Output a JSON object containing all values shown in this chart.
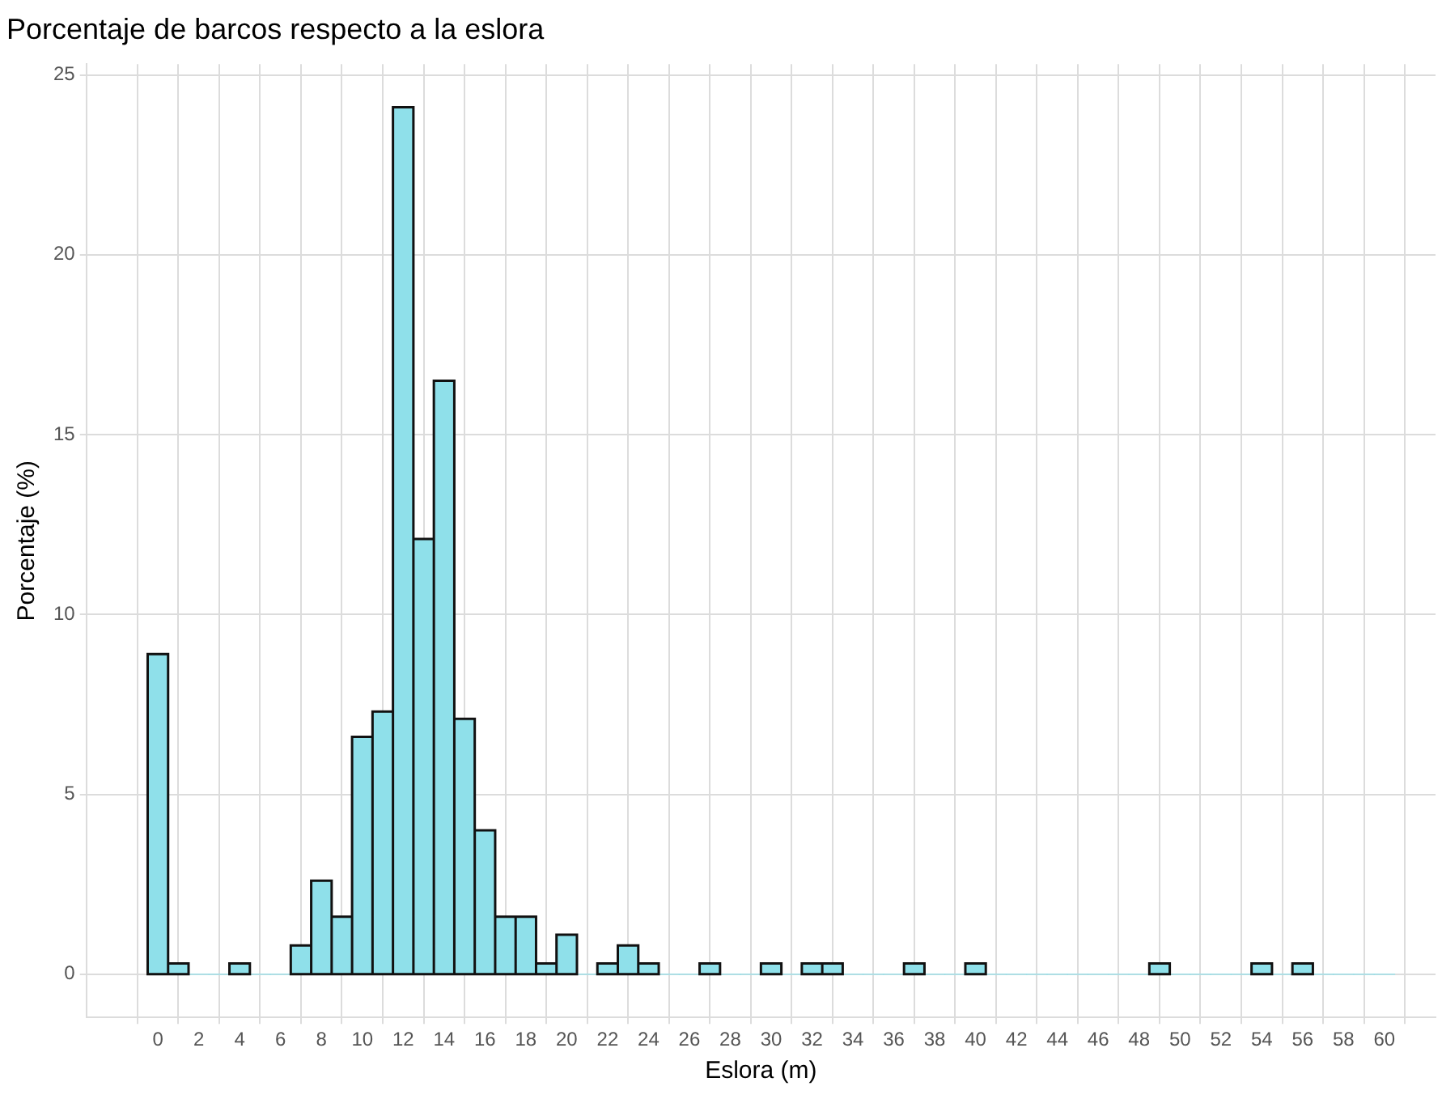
{
  "chart_data": {
    "type": "histogram",
    "title": "Porcentaje de barcos respecto a la eslora",
    "xlabel": "Eslora (m)",
    "ylabel": "Porcentaje (%)",
    "bins": [
      -0.5,
      0.5,
      1.5,
      2.5,
      3.5,
      4.5,
      5.5,
      6.5,
      7.5,
      8.5,
      9.5,
      10.5,
      11.5,
      12.5,
      13.5,
      14.5,
      15.5,
      16.5,
      17.5,
      18.5,
      19.5,
      20.5,
      21.5,
      22.5,
      23.5,
      24.5,
      25.5,
      26.5,
      27.5,
      28.5,
      29.5,
      30.5,
      31.5,
      32.5,
      33.5,
      34.5,
      35.5,
      36.5,
      37.5,
      38.5,
      39.5,
      40.5,
      41.5,
      42.5,
      43.5,
      44.5,
      45.5,
      46.5,
      47.5,
      48.5,
      49.5,
      50.5,
      51.5,
      52.5,
      53.5,
      54.5,
      55.5,
      56.5,
      57.5,
      58.5,
      59.5,
      60.5
    ],
    "values": [
      8.9,
      0.3,
      0,
      0,
      0.3,
      0,
      0,
      0.8,
      2.6,
      1.6,
      6.6,
      7.3,
      24.1,
      12.1,
      16.5,
      7.1,
      4.0,
      1.6,
      1.6,
      0.3,
      1.1,
      0,
      0.3,
      0.8,
      0.3,
      0,
      0,
      0.3,
      0,
      0,
      0.3,
      0,
      0.3,
      0.3,
      0,
      0,
      0,
      0.3,
      0,
      0,
      0.3,
      0,
      0,
      0,
      0,
      0,
      0,
      0,
      0,
      0.3,
      0,
      0,
      0,
      0,
      0.3,
      0,
      0.3,
      0,
      0,
      0,
      0
    ],
    "color": "#8fe0ea",
    "xlim": [
      -3.5,
      62.5
    ],
    "xticks": [
      0,
      2,
      4,
      6,
      8,
      10,
      12,
      14,
      16,
      18,
      20,
      22,
      24,
      26,
      28,
      30,
      32,
      34,
      36,
      38,
      40,
      42,
      44,
      46,
      48,
      50,
      52,
      54,
      56,
      58,
      60
    ],
    "ylim": [
      -1.2,
      25.3
    ],
    "yticks": [
      0,
      5,
      10,
      15,
      20,
      25
    ],
    "grid": true
  }
}
